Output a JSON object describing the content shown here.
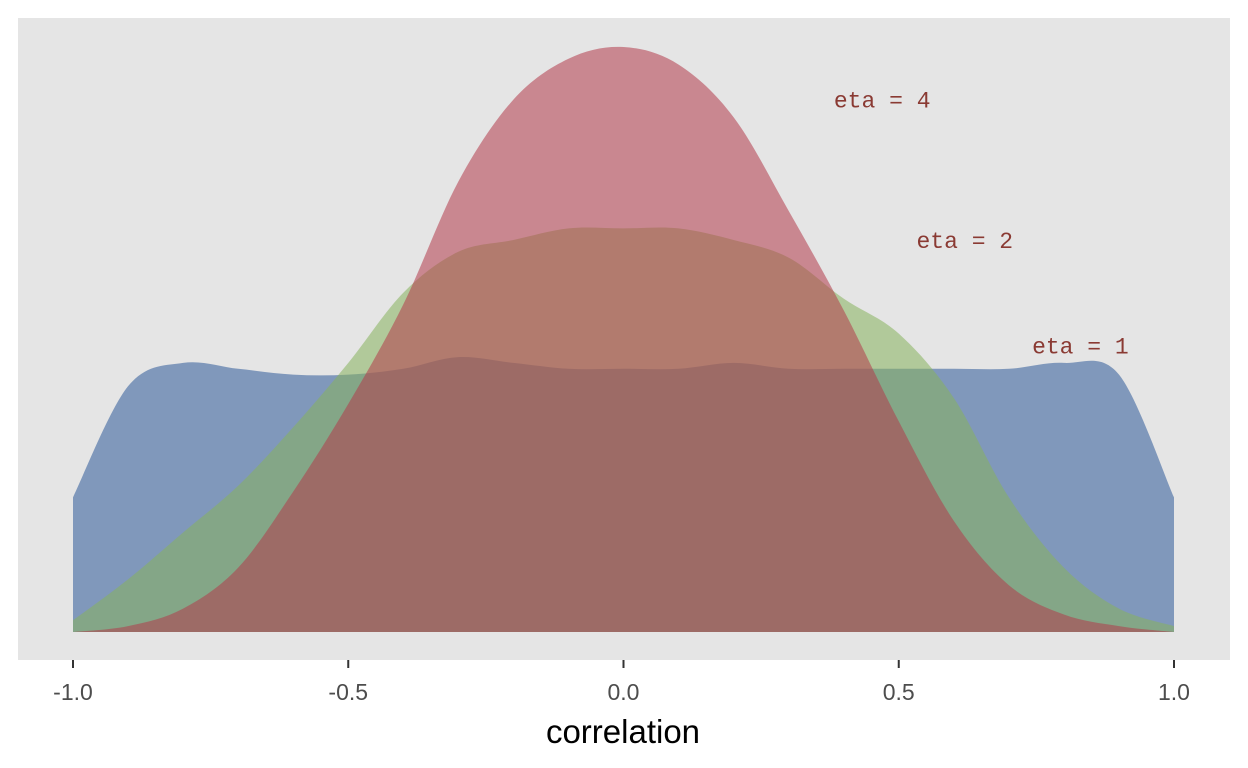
{
  "chart_data": {
    "type": "area",
    "title": "",
    "xlabel": "correlation",
    "ylabel": "",
    "xlim": [
      -1.0,
      1.0
    ],
    "ylim": [
      0,
      1.0
    ],
    "xticks": [
      -1.0,
      -0.5,
      0.0,
      0.5,
      1.0
    ],
    "xtick_labels": [
      "-1.0",
      "-0.5",
      "0.0",
      "0.5",
      "1.0"
    ],
    "y_axis_shown": false,
    "grid": false,
    "legend": "none",
    "background_color": "#e5e5e5",
    "annotation_color": "#8a3a33",
    "annotations": [
      {
        "text": "eta = 4",
        "x": 0.47,
        "y": 0.91
      },
      {
        "text": "eta = 2",
        "x": 0.62,
        "y": 0.67
      },
      {
        "text": "eta = 1",
        "x": 0.83,
        "y": 0.49
      }
    ],
    "x": [
      -1.0,
      -0.9,
      -0.8,
      -0.7,
      -0.6,
      -0.5,
      -0.4,
      -0.3,
      -0.2,
      -0.1,
      0.0,
      0.1,
      0.2,
      0.3,
      0.4,
      0.5,
      0.6,
      0.7,
      0.8,
      0.9,
      1.0
    ],
    "series": [
      {
        "id": "eta1",
        "color": "#4a6ea5",
        "opacity": 0.65,
        "values": [
          0.23,
          0.42,
          0.46,
          0.45,
          0.44,
          0.44,
          0.45,
          0.47,
          0.46,
          0.45,
          0.45,
          0.45,
          0.46,
          0.45,
          0.45,
          0.45,
          0.45,
          0.45,
          0.46,
          0.44,
          0.23
        ]
      },
      {
        "id": "eta2",
        "color": "#86b35c",
        "opacity": 0.55,
        "values": [
          0.02,
          0.09,
          0.17,
          0.25,
          0.35,
          0.46,
          0.58,
          0.65,
          0.67,
          0.69,
          0.69,
          0.69,
          0.67,
          0.64,
          0.57,
          0.51,
          0.4,
          0.23,
          0.11,
          0.04,
          0.01
        ]
      },
      {
        "id": "eta4",
        "color": "#b33a4a",
        "opacity": 0.55,
        "values": [
          0.0,
          0.01,
          0.04,
          0.11,
          0.24,
          0.39,
          0.56,
          0.77,
          0.91,
          0.98,
          1.0,
          0.97,
          0.88,
          0.72,
          0.55,
          0.36,
          0.19,
          0.08,
          0.03,
          0.01,
          0.0
        ]
      }
    ]
  }
}
